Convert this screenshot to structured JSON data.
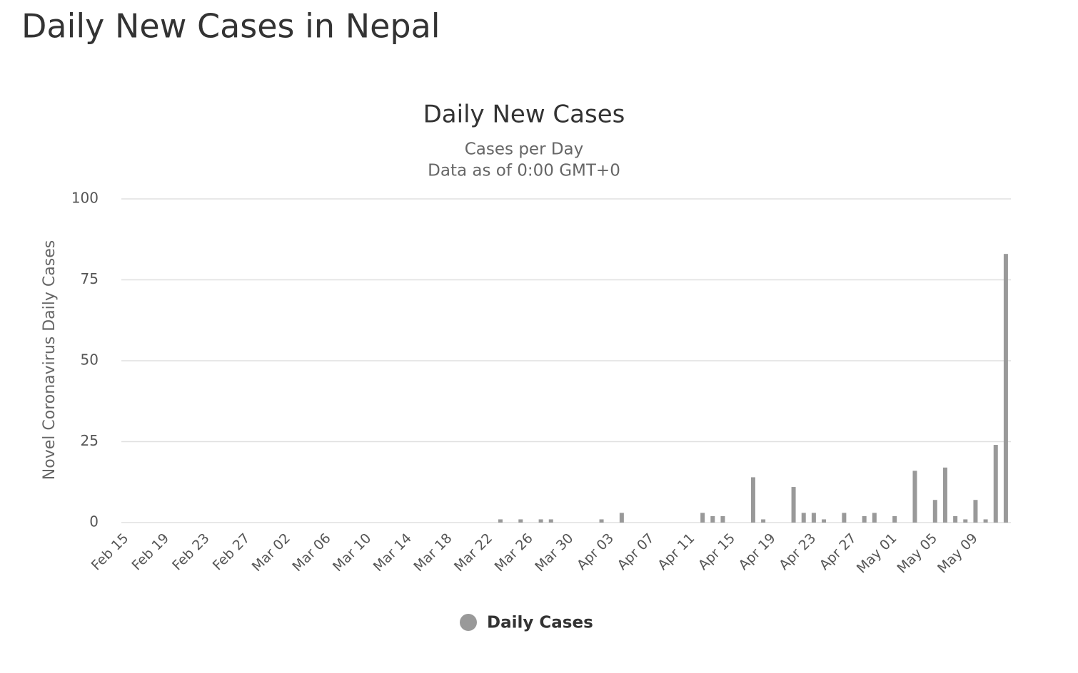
{
  "header": {
    "title": "Daily New Cases in Nepal"
  },
  "chart_data": {
    "type": "bar",
    "title": "Daily New Cases",
    "subtitle": [
      "Cases per Day",
      "Data as of 0:00 GMT+0"
    ],
    "y_label": "Novel Coronavirus Daily Cases",
    "categories": [
      "Feb 15",
      null,
      null,
      null,
      "Feb 19",
      null,
      null,
      null,
      "Feb 23",
      null,
      null,
      null,
      "Feb 27",
      null,
      null,
      null,
      "Mar 02",
      null,
      null,
      null,
      "Mar 06",
      null,
      null,
      null,
      "Mar 10",
      null,
      null,
      null,
      "Mar 14",
      null,
      null,
      null,
      "Mar 18",
      null,
      null,
      null,
      "Mar 22",
      null,
      null,
      null,
      "Mar 26",
      null,
      null,
      null,
      "Mar 30",
      null,
      null,
      null,
      "Apr 03",
      null,
      null,
      null,
      "Apr 07",
      null,
      null,
      null,
      "Apr 11",
      null,
      null,
      null,
      "Apr 15",
      null,
      null,
      null,
      "Apr 19",
      null,
      null,
      null,
      "Apr 23",
      null,
      null,
      null,
      "Apr 27",
      null,
      null,
      null,
      "May 01",
      null,
      null,
      null,
      "May 05",
      null,
      null,
      null,
      "May 09",
      null,
      null,
      null
    ],
    "series": [
      {
        "name": "Daily Cases",
        "color": "#999999",
        "values": [
          0,
          0,
          0,
          0,
          0,
          0,
          0,
          0,
          0,
          0,
          0,
          0,
          0,
          0,
          0,
          0,
          0,
          0,
          0,
          0,
          0,
          0,
          0,
          0,
          0,
          0,
          0,
          0,
          0,
          0,
          0,
          0,
          0,
          0,
          0,
          0,
          0,
          1,
          0,
          1,
          0,
          1,
          1,
          0,
          0,
          0,
          0,
          1,
          0,
          3,
          0,
          0,
          0,
          0,
          0,
          0,
          0,
          3,
          2,
          2,
          0,
          0,
          14,
          1,
          0,
          0,
          11,
          3,
          3,
          1,
          0,
          3,
          0,
          2,
          3,
          0,
          2,
          0,
          16,
          0,
          7,
          17,
          2,
          1,
          7,
          1,
          24,
          83
        ]
      }
    ],
    "ylim": [
      0,
      100
    ],
    "yticks": [
      0,
      25,
      50,
      75,
      100
    ],
    "grid": true,
    "legend": "bottom"
  }
}
